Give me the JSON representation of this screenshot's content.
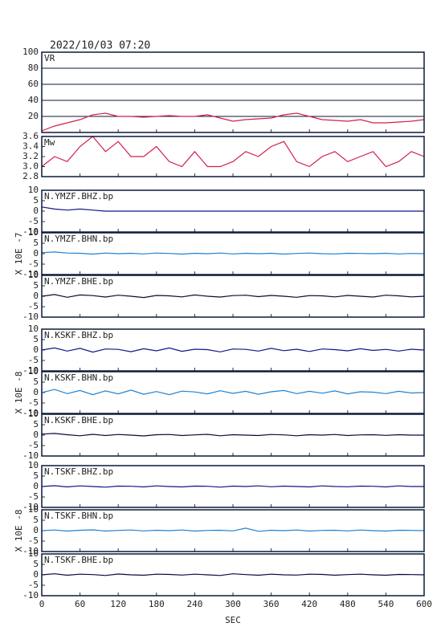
{
  "chart_data": [
    {
      "type": "line",
      "title": "2022/10/03 07:20",
      "xlim": [
        0,
        600
      ],
      "xticks": [
        0,
        60,
        120,
        180,
        240,
        300,
        360,
        420,
        480,
        540,
        600
      ],
      "ylim": [
        0,
        100
      ],
      "yticks": [
        20,
        40,
        60,
        80,
        100
      ],
      "grid": true,
      "series": [
        {
          "name": "VR",
          "color": "#d21f4b",
          "x": [
            0,
            20,
            40,
            60,
            80,
            100,
            120,
            140,
            160,
            180,
            200,
            220,
            240,
            260,
            280,
            300,
            320,
            340,
            360,
            380,
            400,
            420,
            440,
            460,
            480,
            500,
            520,
            540,
            560,
            580,
            600
          ],
          "values": [
            2,
            8,
            12,
            16,
            22,
            24,
            20,
            20,
            19,
            20,
            21,
            20,
            20,
            22,
            18,
            14,
            16,
            17,
            18,
            22,
            24,
            20,
            16,
            15,
            14,
            16,
            12,
            12,
            13,
            14,
            16
          ]
        }
      ]
    },
    {
      "type": "line",
      "xlim": [
        0,
        600
      ],
      "xticks": [
        0,
        60,
        120,
        180,
        240,
        300,
        360,
        420,
        480,
        540,
        600
      ],
      "ylim": [
        2.8,
        3.6
      ],
      "yticks": [
        2.8,
        {
          "value": 3,
          "label": "3.0"
        },
        3.2,
        3.4,
        3.6
      ],
      "grid": false,
      "series": [
        {
          "name": "Mw",
          "color": "#d21f4b",
          "x": [
            0,
            20,
            40,
            60,
            80,
            100,
            120,
            140,
            160,
            180,
            200,
            220,
            240,
            260,
            280,
            300,
            320,
            340,
            360,
            380,
            400,
            420,
            440,
            460,
            480,
            500,
            520,
            540,
            560,
            580,
            600
          ],
          "values": [
            3.0,
            3.2,
            3.1,
            3.4,
            3.6,
            3.3,
            3.5,
            3.2,
            3.2,
            3.4,
            3.1,
            3.0,
            3.3,
            3.0,
            3.0,
            3.1,
            3.3,
            3.2,
            3.4,
            3.5,
            3.1,
            3.0,
            3.2,
            3.3,
            3.1,
            3.2,
            3.3,
            3.0,
            3.1,
            3.3,
            3.2
          ]
        }
      ]
    },
    {
      "type": "line",
      "xlim": [
        0,
        600
      ],
      "xticks": [
        0,
        60,
        120,
        180,
        240,
        300,
        360,
        420,
        480,
        540,
        600
      ],
      "ylim": [
        -10,
        10
      ],
      "yticks": [
        -10,
        -5,
        0,
        5,
        10
      ],
      "grid": false,
      "series": [
        {
          "name": "N.YMZF.BHZ.bp",
          "color": "#14148c",
          "x": [
            0,
            20,
            40,
            60,
            80,
            100,
            120,
            140,
            160,
            180,
            200,
            220,
            240,
            260,
            280,
            300,
            320,
            340,
            360,
            380,
            400,
            420,
            440,
            460,
            480,
            500,
            520,
            540,
            560,
            580,
            600
          ],
          "values": [
            2,
            1,
            0.5,
            1,
            0.5,
            0,
            0,
            0,
            0,
            0,
            0,
            0,
            0,
            0,
            0,
            0,
            0,
            0,
            0,
            0,
            0,
            0,
            0,
            0,
            0,
            0,
            0,
            0,
            0,
            0,
            0
          ]
        }
      ]
    },
    {
      "type": "line",
      "ylabel": "X 10E -7",
      "xlim": [
        0,
        600
      ],
      "xticks": [
        0,
        60,
        120,
        180,
        240,
        300,
        360,
        420,
        480,
        540,
        600
      ],
      "ylim": [
        -10,
        10
      ],
      "yticks": [
        -10,
        -5,
        0,
        5,
        10
      ],
      "grid": false,
      "series": [
        {
          "name": "N.YMZF.BHN.bp",
          "color": "#1e82d2",
          "x": [
            0,
            20,
            40,
            60,
            80,
            100,
            120,
            140,
            160,
            180,
            200,
            220,
            240,
            260,
            280,
            300,
            320,
            340,
            360,
            380,
            400,
            420,
            440,
            460,
            480,
            500,
            520,
            540,
            560,
            580,
            600
          ],
          "values": [
            0.5,
            0.8,
            0.3,
            0.2,
            -0.2,
            0.3,
            0,
            0.2,
            -0.1,
            0.3,
            0.1,
            -0.2,
            0.2,
            0,
            0.3,
            -0.1,
            0.2,
            0,
            0.2,
            -0.2,
            0.1,
            0.3,
            0,
            -0.1,
            0.2,
            0.1,
            0,
            0.2,
            -0.1,
            0.1,
            0
          ]
        }
      ]
    },
    {
      "type": "line",
      "xlim": [
        0,
        600
      ],
      "xticks": [
        0,
        60,
        120,
        180,
        240,
        300,
        360,
        420,
        480,
        540,
        600
      ],
      "ylim": [
        -10,
        10
      ],
      "yticks": [
        -10,
        -5,
        0,
        5,
        10
      ],
      "grid": false,
      "series": [
        {
          "name": "N.YMZF.BHE.bp",
          "color": "#0a0a3c",
          "x": [
            0,
            20,
            40,
            60,
            80,
            100,
            120,
            140,
            160,
            180,
            200,
            220,
            240,
            260,
            280,
            300,
            320,
            340,
            360,
            380,
            400,
            420,
            440,
            460,
            480,
            500,
            520,
            540,
            560,
            580,
            600
          ],
          "values": [
            0,
            0.8,
            -0.5,
            0.6,
            0.3,
            -0.4,
            0.5,
            0,
            -0.6,
            0.4,
            0.2,
            -0.3,
            0.6,
            0,
            -0.4,
            0.3,
            0.5,
            -0.2,
            0.4,
            0,
            -0.5,
            0.3,
            0.2,
            -0.3,
            0.4,
            0,
            -0.4,
            0.5,
            0.2,
            -0.3,
            0
          ]
        }
      ]
    },
    {
      "type": "line",
      "xlim": [
        0,
        600
      ],
      "xticks": [
        0,
        60,
        120,
        180,
        240,
        300,
        360,
        420,
        480,
        540,
        600
      ],
      "ylim": [
        -10,
        10
      ],
      "yticks": [
        -10,
        -5,
        0,
        5,
        10
      ],
      "grid": false,
      "series": [
        {
          "name": "N.KSKF.BHZ.bp",
          "color": "#14148c",
          "x": [
            0,
            20,
            40,
            60,
            80,
            100,
            120,
            140,
            160,
            180,
            200,
            220,
            240,
            260,
            280,
            300,
            320,
            340,
            360,
            380,
            400,
            420,
            440,
            460,
            480,
            500,
            520,
            540,
            560,
            580,
            600
          ],
          "values": [
            0,
            1,
            -0.5,
            0.8,
            -1,
            0.5,
            0.3,
            -0.8,
            0.6,
            -0.4,
            1,
            -0.6,
            0.4,
            0.2,
            -0.9,
            0.5,
            0.3,
            -0.5,
            0.8,
            -0.3,
            0.4,
            -0.7,
            0.5,
            0.2,
            -0.4,
            0.6,
            -0.2,
            0.3,
            -0.5,
            0.4,
            0
          ]
        }
      ]
    },
    {
      "type": "line",
      "ylabel": "X 10E -8",
      "xlim": [
        0,
        600
      ],
      "xticks": [
        0,
        60,
        120,
        180,
        240,
        300,
        360,
        420,
        480,
        540,
        600
      ],
      "ylim": [
        -10,
        10
      ],
      "yticks": [
        -10,
        -5,
        0,
        5,
        10
      ],
      "grid": false,
      "series": [
        {
          "name": "N.KSKF.BHN.bp",
          "color": "#1e82d2",
          "x": [
            0,
            20,
            40,
            60,
            80,
            100,
            120,
            140,
            160,
            180,
            200,
            220,
            240,
            260,
            280,
            300,
            320,
            340,
            360,
            380,
            400,
            420,
            440,
            460,
            480,
            500,
            520,
            540,
            560,
            580,
            600
          ],
          "values": [
            0,
            1.5,
            -0.5,
            1,
            -1,
            0.8,
            -0.6,
            1.2,
            -0.8,
            0.5,
            -1,
            0.7,
            0.3,
            -0.6,
            0.9,
            -0.4,
            0.6,
            -0.8,
            0.4,
            1,
            -0.5,
            0.6,
            -0.3,
            0.8,
            -0.6,
            0.4,
            0.2,
            -0.5,
            0.6,
            -0.2,
            0
          ]
        }
      ]
    },
    {
      "type": "line",
      "xlim": [
        0,
        600
      ],
      "xticks": [
        0,
        60,
        120,
        180,
        240,
        300,
        360,
        420,
        480,
        540,
        600
      ],
      "ylim": [
        -10,
        10
      ],
      "yticks": [
        -10,
        -5,
        0,
        5,
        10
      ],
      "grid": false,
      "series": [
        {
          "name": "N.KSKF.BHE.bp",
          "color": "#0a0a3c",
          "x": [
            0,
            20,
            40,
            60,
            80,
            100,
            120,
            140,
            160,
            180,
            200,
            220,
            240,
            260,
            280,
            300,
            320,
            340,
            360,
            380,
            400,
            420,
            440,
            460,
            480,
            500,
            520,
            540,
            560,
            580,
            600
          ],
          "values": [
            0.5,
            0.8,
            0.2,
            -0.3,
            0.4,
            -0.2,
            0.3,
            0,
            -0.4,
            0.2,
            0.3,
            -0.2,
            0.1,
            0.4,
            -0.3,
            0.2,
            0,
            -0.2,
            0.3,
            0.1,
            -0.3,
            0.2,
            0,
            0.3,
            -0.2,
            0.1,
            0.2,
            -0.1,
            0.2,
            0,
            0
          ]
        }
      ]
    },
    {
      "type": "line",
      "xlim": [
        0,
        600
      ],
      "xticks": [
        0,
        60,
        120,
        180,
        240,
        300,
        360,
        420,
        480,
        540,
        600
      ],
      "ylim": [
        -10,
        10
      ],
      "yticks": [
        -10,
        -5,
        0,
        5,
        10
      ],
      "grid": false,
      "series": [
        {
          "name": "N.TSKF.BHZ.bp",
          "color": "#14148c",
          "x": [
            0,
            20,
            40,
            60,
            80,
            100,
            120,
            140,
            160,
            180,
            200,
            220,
            240,
            260,
            280,
            300,
            320,
            340,
            360,
            380,
            400,
            420,
            440,
            460,
            480,
            500,
            520,
            540,
            560,
            580,
            600
          ],
          "values": [
            0,
            0.4,
            -0.2,
            0.3,
            0,
            -0.3,
            0.2,
            0.1,
            -0.2,
            0.3,
            0,
            -0.2,
            0.2,
            0.1,
            -0.3,
            0.2,
            0,
            0.3,
            -0.1,
            0.2,
            0,
            -0.2,
            0.3,
            0,
            -0.1,
            0.2,
            0.1,
            -0.2,
            0.3,
            0,
            0
          ]
        }
      ]
    },
    {
      "type": "line",
      "ylabel": "X 10E -8",
      "xlim": [
        0,
        600
      ],
      "xticks": [
        0,
        60,
        120,
        180,
        240,
        300,
        360,
        420,
        480,
        540,
        600
      ],
      "ylim": [
        -10,
        10
      ],
      "yticks": [
        -10,
        -5,
        0,
        5,
        10
      ],
      "grid": false,
      "series": [
        {
          "name": "N.TSKF.BHN.bp",
          "color": "#1e82d2",
          "x": [
            0,
            20,
            40,
            60,
            80,
            100,
            120,
            140,
            160,
            180,
            200,
            220,
            240,
            260,
            280,
            300,
            320,
            340,
            360,
            380,
            400,
            420,
            440,
            460,
            480,
            500,
            520,
            540,
            560,
            580,
            600
          ],
          "values": [
            0,
            0.3,
            -0.2,
            0.2,
            0.4,
            -0.2,
            0.1,
            0.3,
            -0.1,
            0.2,
            0,
            0.3,
            -0.2,
            0.1,
            0.2,
            -0.1,
            1.2,
            -0.3,
            0.2,
            0,
            0.3,
            -0.2,
            0.1,
            0.2,
            -0.1,
            0.3,
            0,
            -0.2,
            0.2,
            0.1,
            0
          ]
        }
      ]
    },
    {
      "type": "line",
      "xlabel": "SEC",
      "xlim": [
        0,
        600
      ],
      "xticks": [
        0,
        60,
        120,
        180,
        240,
        300,
        360,
        420,
        480,
        540,
        600
      ],
      "ylim": [
        -10,
        10
      ],
      "yticks": [
        -10,
        -5,
        0,
        5,
        10
      ],
      "grid": false,
      "series": [
        {
          "name": "N.TSKF.BHE.bp",
          "color": "#0a0a3c",
          "x": [
            0,
            20,
            40,
            60,
            80,
            100,
            120,
            140,
            160,
            180,
            200,
            220,
            240,
            260,
            280,
            300,
            320,
            340,
            360,
            380,
            400,
            420,
            440,
            460,
            480,
            500,
            520,
            540,
            560,
            580,
            600
          ],
          "values": [
            0,
            0.5,
            -0.2,
            0.3,
            0.1,
            -0.3,
            0.4,
            0,
            -0.2,
            0.3,
            0.2,
            -0.1,
            0.3,
            0,
            -0.3,
            0.5,
            0.1,
            -0.2,
            0.3,
            0,
            -0.1,
            0.3,
            0.2,
            -0.2,
            0.1,
            0.3,
            0,
            -0.2,
            0.2,
            0.1,
            0
          ]
        }
      ]
    }
  ]
}
